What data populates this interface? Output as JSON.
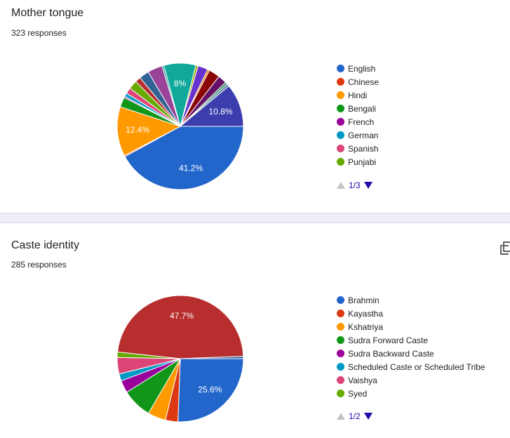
{
  "charts": [
    {
      "title": "Mother tongue",
      "responses": "323 responses",
      "pager": "1/3",
      "legend": [
        {
          "label": "English",
          "color": "#2266cc"
        },
        {
          "label": "Chinese",
          "color": "#dc3912"
        },
        {
          "label": "Hindi",
          "color": "#ff9900"
        },
        {
          "label": "Bengali",
          "color": "#109618"
        },
        {
          "label": "French",
          "color": "#990099"
        },
        {
          "label": "German",
          "color": "#0099c6"
        },
        {
          "label": "Spanish",
          "color": "#dd4477"
        },
        {
          "label": "Punjabi",
          "color": "#66aa00"
        }
      ]
    },
    {
      "title": "Caste identity",
      "responses": "285 responses",
      "pager": "1/2",
      "legend": [
        {
          "label": "Brahmin",
          "color": "#2266cc"
        },
        {
          "label": "Kayastha",
          "color": "#dc3912"
        },
        {
          "label": "Kshatriya",
          "color": "#ff9900"
        },
        {
          "label": "Sudra Forward Caste",
          "color": "#109618"
        },
        {
          "label": "Sudra Backward Caste",
          "color": "#990099"
        },
        {
          "label": "Scheduled Caste or Scheduled Tribe",
          "color": "#0099c6"
        },
        {
          "label": "Vaishya",
          "color": "#dd4477"
        },
        {
          "label": "Syed",
          "color": "#66aa00"
        }
      ]
    }
  ],
  "chart_data": [
    {
      "type": "pie",
      "title": "Mother tongue",
      "slices": [
        {
          "value": 41.2,
          "color": "#2266cc",
          "label": "41.2%"
        },
        {
          "value": 0.3,
          "color": "#dc3912",
          "label": ""
        },
        {
          "value": 12.4,
          "color": "#ff9900",
          "label": "12.4%"
        },
        {
          "value": 2.5,
          "color": "#109618",
          "label": ""
        },
        {
          "value": 0.3,
          "color": "#990099",
          "label": ""
        },
        {
          "value": 0.9,
          "color": "#0099c6",
          "label": ""
        },
        {
          "value": 1.5,
          "color": "#dd4477",
          "label": ""
        },
        {
          "value": 2.2,
          "color": "#66aa00",
          "label": ""
        },
        {
          "value": 1.4,
          "color": "#b82e2e",
          "label": ""
        },
        {
          "value": 2.5,
          "color": "#316395",
          "label": ""
        },
        {
          "value": 3.7,
          "color": "#994499",
          "label": ""
        },
        {
          "value": 0.5,
          "color": "#22aa99",
          "label": ""
        },
        {
          "value": 8.0,
          "color": "#0fa89a",
          "label": "8%"
        },
        {
          "value": 0.6,
          "color": "#aaaa11",
          "label": ""
        },
        {
          "value": 2.5,
          "color": "#6633cc",
          "label": ""
        },
        {
          "value": 0.5,
          "color": "#e67300",
          "label": ""
        },
        {
          "value": 2.8,
          "color": "#8b0707",
          "label": ""
        },
        {
          "value": 2.2,
          "color": "#651067",
          "label": ""
        },
        {
          "value": 0.6,
          "color": "#329262",
          "label": ""
        },
        {
          "value": 0.6,
          "color": "#5574a6",
          "label": ""
        },
        {
          "value": 10.8,
          "color": "#3b3eac",
          "label": "10.8%"
        }
      ]
    },
    {
      "type": "pie",
      "title": "Caste identity",
      "slices": [
        {
          "value": 25.6,
          "color": "#2266cc",
          "label": "25.6%"
        },
        {
          "value": 3.2,
          "color": "#dc3912",
          "label": ""
        },
        {
          "value": 4.6,
          "color": "#ff9900",
          "label": ""
        },
        {
          "value": 7.7,
          "color": "#109618",
          "label": ""
        },
        {
          "value": 3.2,
          "color": "#990099",
          "label": ""
        },
        {
          "value": 1.8,
          "color": "#0099c6",
          "label": ""
        },
        {
          "value": 4.2,
          "color": "#dd4477",
          "label": ""
        },
        {
          "value": 1.4,
          "color": "#66aa00",
          "label": ""
        },
        {
          "value": 47.7,
          "color": "#b82e2e",
          "label": "47.7%"
        },
        {
          "value": 0.6,
          "color": "#316395",
          "label": ""
        }
      ]
    }
  ]
}
